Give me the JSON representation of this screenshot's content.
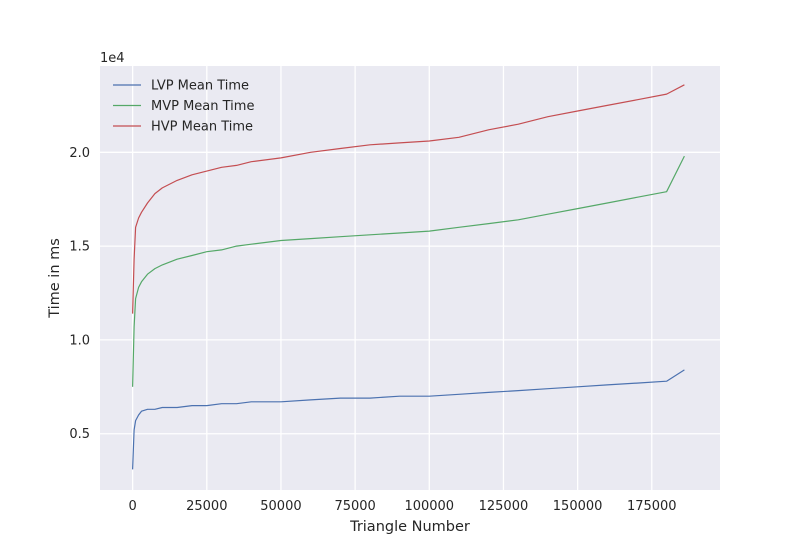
{
  "chart_data": {
    "type": "line",
    "title": "",
    "xlabel": "Triangle Number",
    "ylabel": "Time in ms",
    "y_offset_label": "1e4",
    "xlim": [
      -11000,
      198000
    ],
    "ylim": [
      2000,
      24600
    ],
    "grid": true,
    "legend_placement": "top-left",
    "x_ticks": [
      0,
      25000,
      50000,
      75000,
      100000,
      125000,
      150000,
      175000
    ],
    "x_tick_labels": [
      "0",
      "25000",
      "50000",
      "75000",
      "100000",
      "125000",
      "150000",
      "175000"
    ],
    "y_ticks": [
      5000,
      10000,
      15000,
      20000
    ],
    "y_tick_labels": [
      "0.5",
      "1.0",
      "1.5",
      "2.0"
    ],
    "series": [
      {
        "name": "LVP Mean Time",
        "color": "#4c72b0",
        "x": [
          0,
          500,
          1000,
          2000,
          3000,
          5000,
          7500,
          10000,
          15000,
          20000,
          25000,
          30000,
          35000,
          40000,
          50000,
          60000,
          70000,
          80000,
          90000,
          100000,
          110000,
          120000,
          130000,
          140000,
          150000,
          160000,
          170000,
          180000,
          186000
        ],
        "y": [
          3100,
          5200,
          5700,
          6000,
          6200,
          6300,
          6300,
          6400,
          6400,
          6500,
          6500,
          6600,
          6600,
          6700,
          6700,
          6800,
          6900,
          6900,
          7000,
          7000,
          7100,
          7200,
          7300,
          7400,
          7500,
          7600,
          7700,
          7800,
          8400
        ]
      },
      {
        "name": "MVP Mean Time",
        "color": "#55a868",
        "x": [
          0,
          500,
          1000,
          2000,
          3000,
          5000,
          7500,
          10000,
          15000,
          20000,
          25000,
          30000,
          35000,
          40000,
          50000,
          60000,
          70000,
          80000,
          90000,
          100000,
          110000,
          120000,
          130000,
          140000,
          150000,
          160000,
          170000,
          180000,
          186000
        ],
        "y": [
          7500,
          10700,
          12200,
          12800,
          13100,
          13500,
          13800,
          14000,
          14300,
          14500,
          14700,
          14800,
          15000,
          15100,
          15300,
          15400,
          15500,
          15600,
          15700,
          15800,
          16000,
          16200,
          16400,
          16700,
          17000,
          17300,
          17600,
          17900,
          19800
        ]
      },
      {
        "name": "HVP Mean Time",
        "color": "#c44e52",
        "x": [
          0,
          500,
          1000,
          2000,
          3000,
          5000,
          7500,
          10000,
          15000,
          20000,
          25000,
          30000,
          35000,
          40000,
          50000,
          60000,
          70000,
          80000,
          90000,
          100000,
          110000,
          120000,
          130000,
          140000,
          150000,
          160000,
          170000,
          180000,
          186000
        ],
        "y": [
          11400,
          14300,
          16000,
          16500,
          16800,
          17300,
          17800,
          18100,
          18500,
          18800,
          19000,
          19200,
          19300,
          19500,
          19700,
          20000,
          20200,
          20400,
          20500,
          20600,
          20800,
          21200,
          21500,
          21900,
          22200,
          22500,
          22800,
          23100,
          23600
        ]
      }
    ]
  }
}
